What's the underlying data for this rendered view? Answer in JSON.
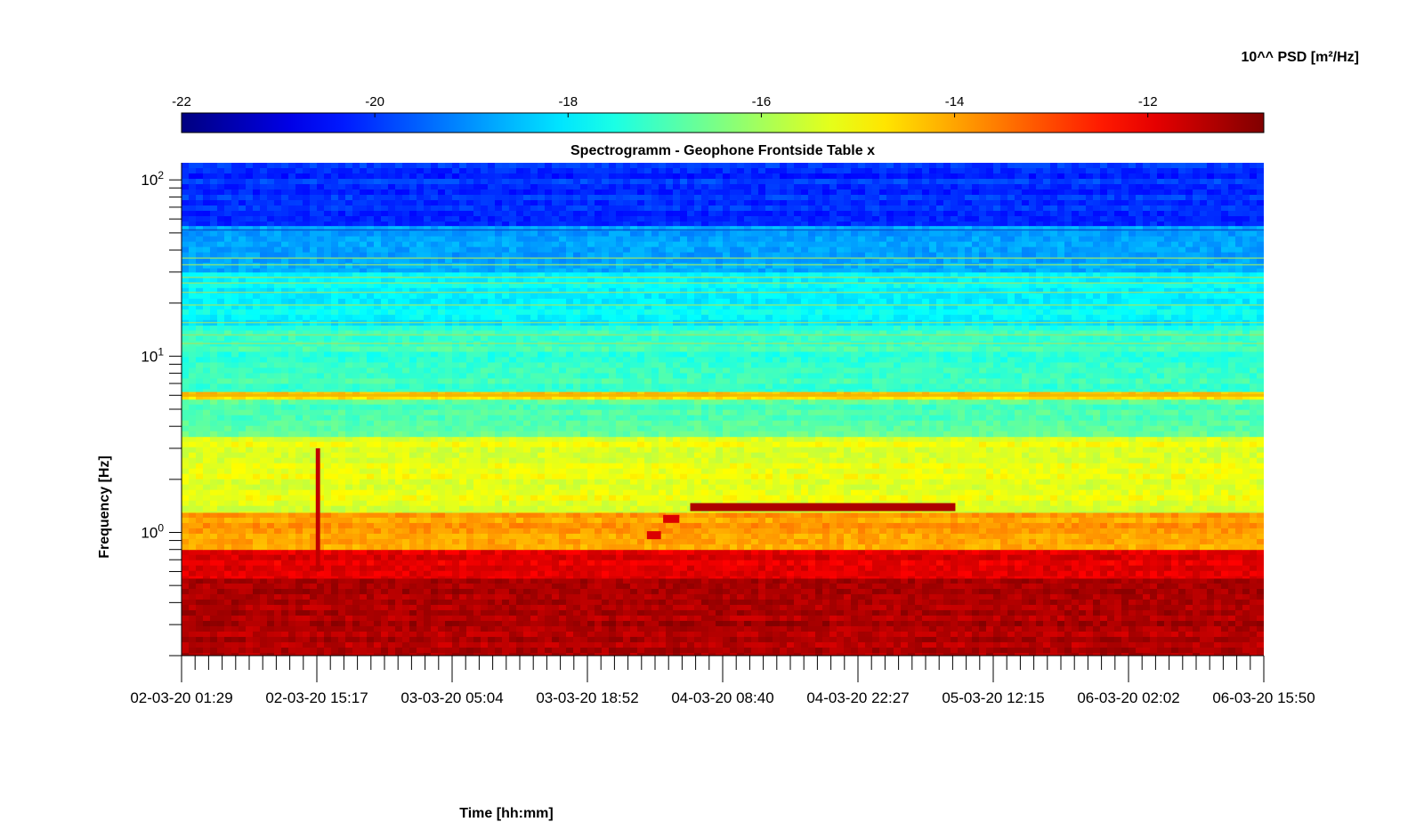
{
  "chart_data": {
    "type": "heatmap",
    "title": "Spectrogramm - Geophone Frontside Table x",
    "xlabel": "Time [hh:mm]",
    "ylabel": "Frequency [Hz]",
    "colorbar": {
      "label": "10^^ PSD [m²/Hz]",
      "range": [
        -22,
        -10.8
      ],
      "ticks": [
        -22,
        -20,
        -18,
        -16,
        -14,
        -12
      ],
      "colormap": "jet",
      "placement": "top"
    },
    "x_ticks": [
      "02-03-20 01:29",
      "02-03-20 15:17",
      "03-03-20 05:04",
      "03-03-20 18:52",
      "04-03-20 08:40",
      "04-03-20 22:27",
      "05-03-20 12:15",
      "06-03-20 02:02",
      "06-03-20 15:50"
    ],
    "x_range": [
      "02-03-20 01:29",
      "06-03-20 15:50"
    ],
    "y_scale": "log",
    "y_range": [
      0.2,
      125
    ],
    "y_ticks": [
      {
        "base": "10",
        "exp": "0",
        "value": 1
      },
      {
        "base": "10",
        "exp": "1",
        "value": 10
      },
      {
        "base": "10",
        "exp": "2",
        "value": 100
      }
    ],
    "grid": false,
    "bands": [
      {
        "fmin": 0.2,
        "fmax": 0.55,
        "log_psd": -11.3
      },
      {
        "fmin": 0.55,
        "fmax": 0.8,
        "log_psd": -11.9
      },
      {
        "fmin": 0.8,
        "fmax": 1.3,
        "log_psd": -13.9
      },
      {
        "fmin": 1.3,
        "fmax": 3.5,
        "log_psd": -15.3
      },
      {
        "fmin": 3.5,
        "fmax": 5.7,
        "log_psd": -16.8
      },
      {
        "fmin": 5.7,
        "fmax": 6.3,
        "log_psd": -14.5
      },
      {
        "fmin": 6.3,
        "fmax": 15,
        "log_psd": -17.2
      },
      {
        "fmin": 15,
        "fmax": 30,
        "log_psd": -17.9
      },
      {
        "fmin": 30,
        "fmax": 55,
        "log_psd": -18.9
      },
      {
        "fmin": 55,
        "fmax": 125,
        "log_psd": -20.1
      }
    ],
    "features": [
      {
        "label": "narrowband line",
        "t_start": 0.47,
        "t_end": 0.715,
        "freq": 1.4,
        "log_psd": -11.3
      },
      {
        "label": "narrowband line",
        "t_start": 0.445,
        "t_end": 0.46,
        "freq": 1.2,
        "log_psd": -11.8
      },
      {
        "label": "narrowband line",
        "t_start": 0.43,
        "t_end": 0.443,
        "freq": 0.97,
        "log_psd": -11.8
      },
      {
        "label": "broadband transient",
        "t_start": 0.124,
        "t_end": 0.128,
        "fmin": 0.6,
        "fmax": 3.0,
        "log_psd": -11.5
      }
    ]
  }
}
